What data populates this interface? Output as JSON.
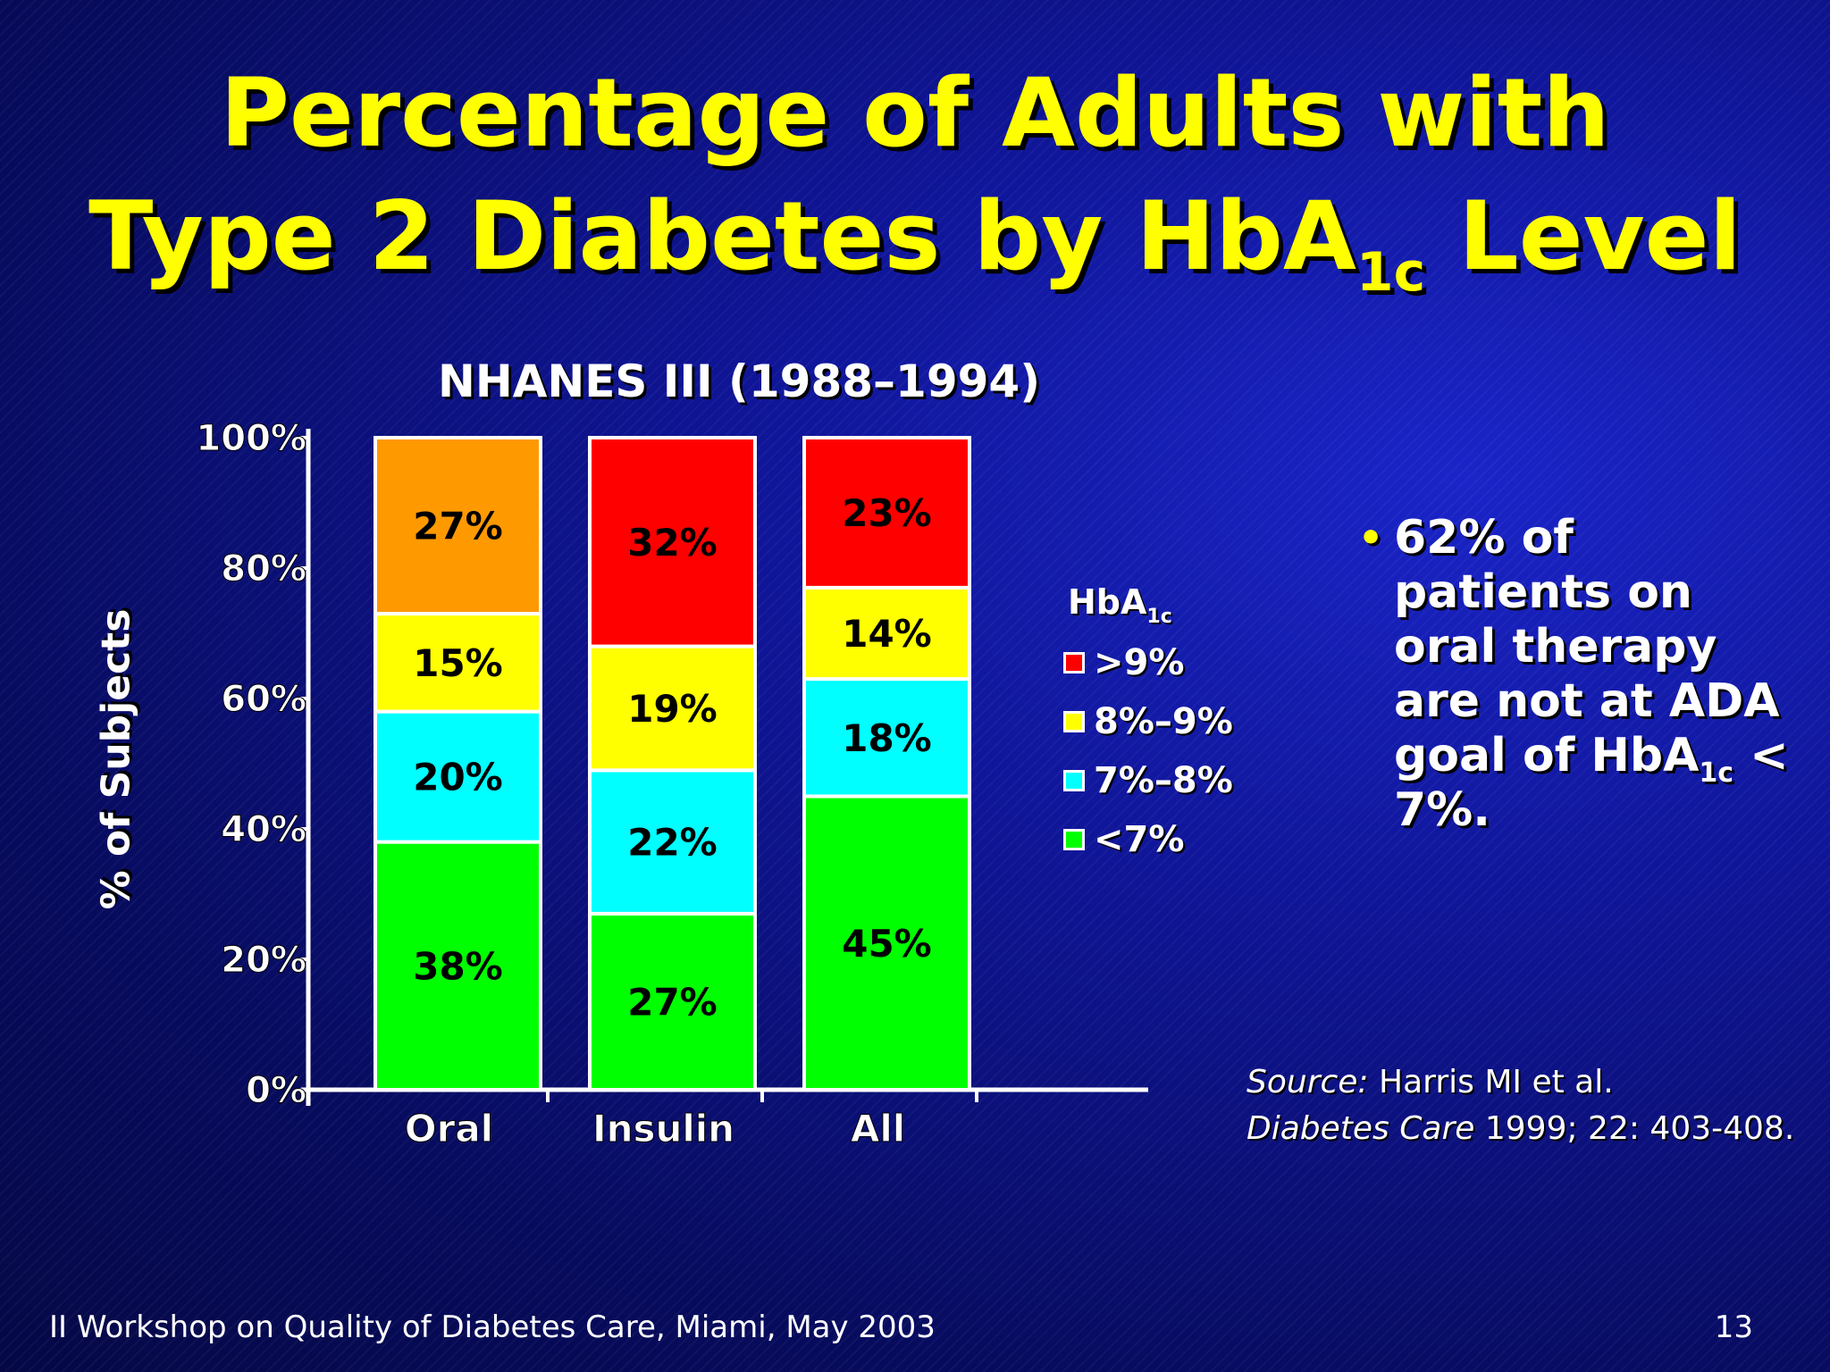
{
  "slide": {
    "title_line1": "Percentage of Adults with",
    "title_line2_pre": "Type 2 Diabetes by HbA",
    "title_line2_sub": "1c",
    "title_line2_post": " Level",
    "footer": "II Workshop on Quality of Diabetes Care, Miami, May 2003",
    "page_number": "13"
  },
  "bullet": {
    "text_pre": "62% of patients on oral therapy are not at ADA goal of HbA",
    "text_sub": "1c",
    "text_post": " < 7%."
  },
  "source": {
    "label": "Source:",
    "line1_rest": " Harris MI et al.",
    "journal": "Diabetes Care",
    "line2_rest": " 1999; 22: 403-408."
  },
  "chart_data": {
    "type": "bar",
    "stacked": true,
    "title": "NHANES III (1988–1994)",
    "ylabel": "% of Subjects",
    "xlabel": "",
    "ylim": [
      0,
      100
    ],
    "yticks": [
      "0%",
      "20%",
      "40%",
      "60%",
      "80%",
      "100%"
    ],
    "categories": [
      "Oral",
      "Insulin",
      "All"
    ],
    "legend_title_pre": "HbA",
    "legend_title_sub": "1c",
    "legend_position": "right",
    "series": [
      {
        "name": "<7%",
        "color": "#00ff00",
        "values": [
          38,
          27,
          45
        ],
        "labels": [
          "38%",
          "27%",
          "45%"
        ]
      },
      {
        "name": "7%–8%",
        "color": "#00ffff",
        "values": [
          20,
          22,
          18
        ],
        "labels": [
          "20%",
          "22%",
          "18%"
        ]
      },
      {
        "name": "8%–9%",
        "color": "#ffff00",
        "values": [
          15,
          19,
          14
        ],
        "labels": [
          "15%",
          "19%",
          "14%"
        ]
      },
      {
        "name": ">9%",
        "color": "#ff0000",
        "values": [
          27,
          32,
          23
        ],
        "labels": [
          "27%",
          "32%",
          "23%"
        ]
      }
    ],
    "series_overrides": {
      "Oral": {
        ">9%": "#ff9900"
      }
    },
    "legend_order": [
      ">9%",
      "8%–9%",
      "7%–8%",
      "<7%"
    ],
    "label_color": "#000000"
  }
}
